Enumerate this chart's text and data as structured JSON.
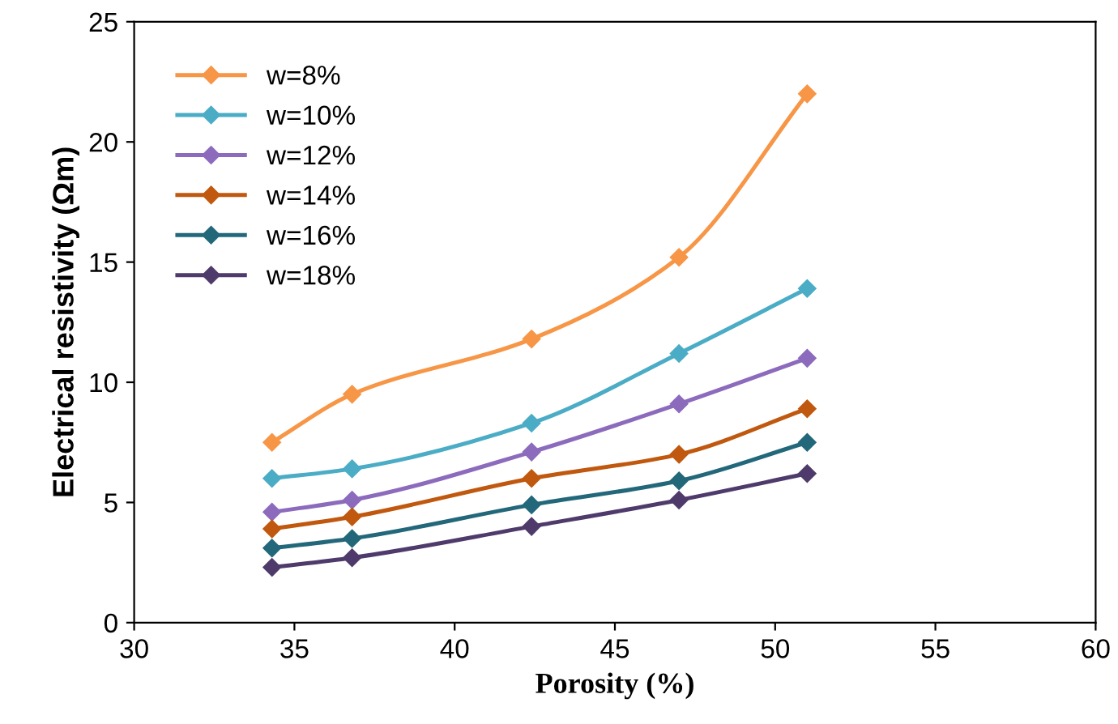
{
  "chart_data": {
    "type": "line",
    "xlabel": "Porosity (%)",
    "ylabel": "Electrical resistivity (Ωm)",
    "x": [
      34.3,
      36.8,
      42.4,
      47.0,
      51.0
    ],
    "series": [
      {
        "name": "w=8%",
        "color": "#f79646",
        "values": [
          7.5,
          9.5,
          11.8,
          15.2,
          22.0
        ]
      },
      {
        "name": "w=10%",
        "color": "#4bacc6",
        "values": [
          6.0,
          6.4,
          8.3,
          11.2,
          13.9
        ]
      },
      {
        "name": "w=12%",
        "color": "#8c6bbd",
        "values": [
          4.6,
          5.1,
          7.1,
          9.1,
          11.0
        ]
      },
      {
        "name": "w=14%",
        "color": "#c0590f",
        "values": [
          3.9,
          4.4,
          6.0,
          7.0,
          8.9
        ]
      },
      {
        "name": "w=16%",
        "color": "#23687a",
        "values": [
          3.1,
          3.5,
          4.9,
          5.9,
          7.5
        ]
      },
      {
        "name": "w=18%",
        "color": "#4f3b6b",
        "values": [
          2.3,
          2.7,
          4.0,
          5.1,
          6.2
        ]
      }
    ],
    "xlim": [
      30,
      60
    ],
    "ylim": [
      0,
      25
    ],
    "xticks": [
      30,
      35,
      40,
      45,
      50,
      55,
      60
    ],
    "yticks": [
      0,
      5,
      10,
      15,
      20,
      25
    ],
    "grid": false,
    "legend": "top left",
    "marker": "diamond",
    "line_style": "solid"
  }
}
